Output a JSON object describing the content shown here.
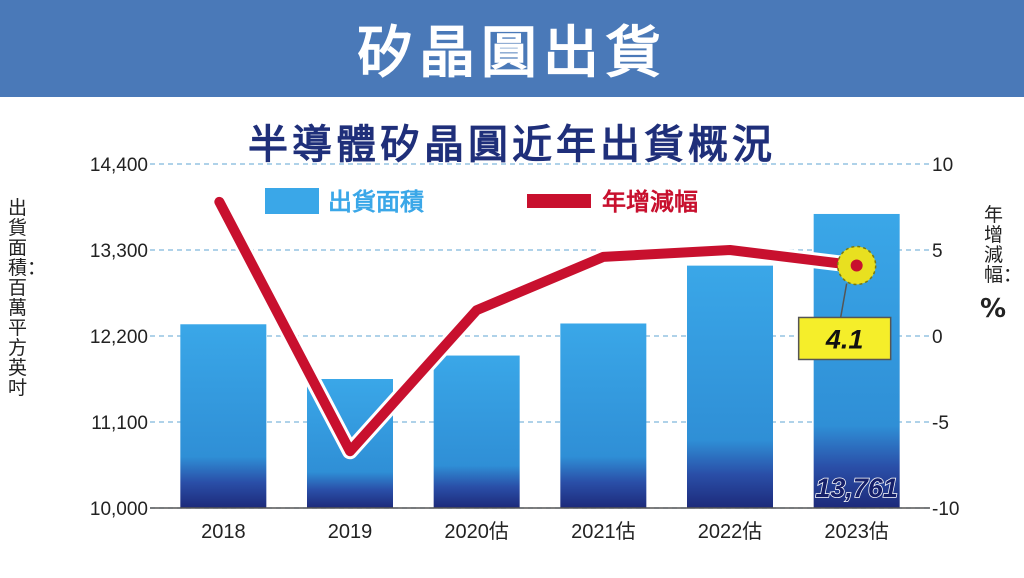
{
  "banner": {
    "title": "矽晶圓出貨"
  },
  "chart_data": {
    "type": "bar+line",
    "title": "半導體矽晶圓近年出貨概況",
    "categories": [
      "2018",
      "2019",
      "2020估",
      "2021估",
      "2022估",
      "2023估"
    ],
    "series": [
      {
        "name": "出貨面積",
        "type": "bar",
        "axis": "left",
        "color": "#3aa7e8",
        "values": [
          12350,
          11650,
          11950,
          12360,
          13100,
          13761
        ]
      },
      {
        "name": "年增減幅",
        "type": "line",
        "axis": "right",
        "color": "#c8102e",
        "values": [
          7.8,
          -6.7,
          1.5,
          4.6,
          5.0,
          4.1
        ]
      }
    ],
    "ylabel_left": "出貨面積：百萬平方英吋",
    "ylabel_right": "年增減幅：",
    "y2unit": "%",
    "ylim_left": [
      10000,
      14400
    ],
    "yticks_left": [
      "10,000",
      "11,100",
      "12,200",
      "13,300",
      "14,400"
    ],
    "ylim_right": [
      -10,
      10
    ],
    "yticks_right": [
      "-10",
      "-5",
      "0",
      "5",
      "10"
    ],
    "annotations": {
      "last_bar_label": "13,761",
      "last_point_label": "4.1"
    },
    "grid": true,
    "legend_position": "top"
  }
}
